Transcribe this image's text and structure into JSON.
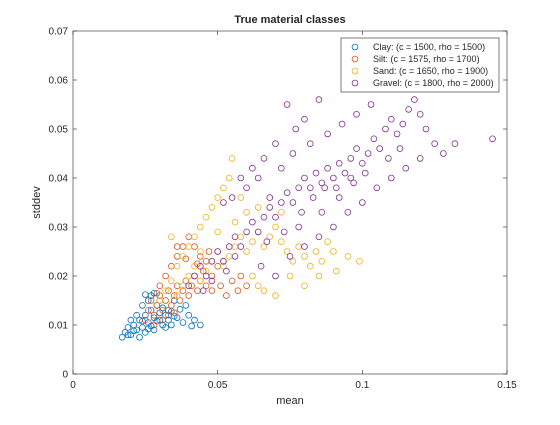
{
  "chart_data": {
    "type": "scatter",
    "title": "True material classes",
    "xlabel": "mean",
    "ylabel": "stddev",
    "xlim": [
      0,
      0.15
    ],
    "ylim": [
      0,
      0.07
    ],
    "xticks": [
      0,
      0.05,
      0.1,
      0.15
    ],
    "xtick_labels": [
      "0",
      "0.05",
      "0.1",
      "0.15"
    ],
    "yticks": [
      0,
      0.01,
      0.02,
      0.03,
      0.04,
      0.05,
      0.06,
      0.07
    ],
    "ytick_labels": [
      "0",
      "0.01",
      "0.02",
      "0.03",
      "0.04",
      "0.05",
      "0.06",
      "0.07"
    ],
    "grid": false,
    "legend_position": "top-right",
    "marker": "open-circle",
    "series": [
      {
        "name": "Clay: (c = 1500, rho = 1500)",
        "color": "#0072BD",
        "points": [
          [
            0.017,
            0.0075
          ],
          [
            0.018,
            0.0085
          ],
          [
            0.019,
            0.0095
          ],
          [
            0.02,
            0.008
          ],
          [
            0.021,
            0.01
          ],
          [
            0.022,
            0.009
          ],
          [
            0.023,
            0.011
          ],
          [
            0.024,
            0.0095
          ],
          [
            0.025,
            0.012
          ],
          [
            0.026,
            0.0105
          ],
          [
            0.027,
            0.013
          ],
          [
            0.028,
            0.0115
          ],
          [
            0.029,
            0.014
          ],
          [
            0.03,
            0.0125
          ],
          [
            0.022,
            0.012
          ],
          [
            0.024,
            0.014
          ],
          [
            0.026,
            0.015
          ],
          [
            0.027,
            0.016
          ],
          [
            0.028,
            0.0165
          ],
          [
            0.03,
            0.015
          ],
          [
            0.031,
            0.0135
          ],
          [
            0.032,
            0.012
          ],
          [
            0.033,
            0.011
          ],
          [
            0.034,
            0.01
          ],
          [
            0.036,
            0.0115
          ],
          [
            0.038,
            0.0105
          ],
          [
            0.04,
            0.012
          ],
          [
            0.042,
            0.011
          ],
          [
            0.044,
            0.01
          ],
          [
            0.039,
            0.014
          ],
          [
            0.035,
            0.015
          ],
          [
            0.02,
            0.011
          ],
          [
            0.019,
            0.008
          ],
          [
            0.023,
            0.0075
          ],
          [
            0.025,
            0.0085
          ],
          [
            0.028,
            0.009
          ],
          [
            0.031,
            0.01
          ],
          [
            0.033,
            0.013
          ],
          [
            0.021,
            0.0088
          ],
          [
            0.026,
            0.0092
          ],
          [
            0.029,
            0.0108
          ],
          [
            0.032,
            0.0095
          ],
          [
            0.034,
            0.0128
          ],
          [
            0.037,
            0.0132
          ],
          [
            0.041,
            0.0098
          ],
          [
            0.024,
            0.0108
          ],
          [
            0.027,
            0.0098
          ],
          [
            0.03,
            0.011
          ],
          [
            0.035,
            0.0118
          ],
          [
            0.025,
            0.0162
          ]
        ]
      },
      {
        "name": "Silt: (c = 1575, rho = 1700)",
        "color": "#D95319",
        "points": [
          [
            0.025,
            0.011
          ],
          [
            0.026,
            0.013
          ],
          [
            0.027,
            0.015
          ],
          [
            0.028,
            0.012
          ],
          [
            0.029,
            0.014
          ],
          [
            0.03,
            0.016
          ],
          [
            0.031,
            0.013
          ],
          [
            0.032,
            0.015
          ],
          [
            0.033,
            0.017
          ],
          [
            0.034,
            0.014
          ],
          [
            0.035,
            0.016
          ],
          [
            0.036,
            0.018
          ],
          [
            0.037,
            0.015
          ],
          [
            0.038,
            0.017
          ],
          [
            0.039,
            0.019
          ],
          [
            0.04,
            0.016
          ],
          [
            0.041,
            0.018
          ],
          [
            0.042,
            0.02
          ],
          [
            0.043,
            0.017
          ],
          [
            0.044,
            0.019
          ],
          [
            0.045,
            0.021
          ],
          [
            0.046,
            0.018
          ],
          [
            0.048,
            0.02
          ],
          [
            0.05,
            0.022
          ],
          [
            0.03,
            0.018
          ],
          [
            0.032,
            0.02
          ],
          [
            0.034,
            0.022
          ],
          [
            0.036,
            0.024
          ],
          [
            0.038,
            0.026
          ],
          [
            0.04,
            0.028
          ],
          [
            0.042,
            0.026
          ],
          [
            0.044,
            0.024
          ],
          [
            0.046,
            0.023
          ],
          [
            0.048,
            0.017
          ],
          [
            0.051,
            0.018
          ],
          [
            0.053,
            0.016
          ],
          [
            0.055,
            0.019
          ],
          [
            0.057,
            0.017
          ],
          [
            0.06,
            0.018
          ],
          [
            0.058,
            0.02
          ],
          [
            0.028,
            0.01
          ],
          [
            0.031,
            0.011
          ],
          [
            0.033,
            0.012
          ],
          [
            0.035,
            0.0125
          ],
          [
            0.036,
            0.026
          ],
          [
            0.039,
            0.0235
          ],
          [
            0.043,
            0.0225
          ],
          [
            0.047,
            0.025
          ],
          [
            0.052,
            0.023
          ],
          [
            0.029,
            0.0165
          ]
        ]
      },
      {
        "name": "Sand: (c = 1650, rho = 1900)",
        "color": "#EDB120",
        "points": [
          [
            0.03,
            0.015
          ],
          [
            0.032,
            0.017
          ],
          [
            0.034,
            0.019
          ],
          [
            0.036,
            0.016
          ],
          [
            0.038,
            0.018
          ],
          [
            0.04,
            0.02
          ],
          [
            0.042,
            0.022
          ],
          [
            0.044,
            0.019
          ],
          [
            0.046,
            0.021
          ],
          [
            0.048,
            0.023
          ],
          [
            0.05,
            0.025
          ],
          [
            0.052,
            0.022
          ],
          [
            0.054,
            0.024
          ],
          [
            0.056,
            0.026
          ],
          [
            0.058,
            0.028
          ],
          [
            0.06,
            0.025
          ],
          [
            0.062,
            0.027
          ],
          [
            0.064,
            0.029
          ],
          [
            0.066,
            0.026
          ],
          [
            0.068,
            0.028
          ],
          [
            0.07,
            0.03
          ],
          [
            0.072,
            0.027
          ],
          [
            0.074,
            0.025
          ],
          [
            0.076,
            0.023
          ],
          [
            0.078,
            0.026
          ],
          [
            0.08,
            0.024
          ],
          [
            0.082,
            0.022
          ],
          [
            0.084,
            0.025
          ],
          [
            0.086,
            0.023
          ],
          [
            0.088,
            0.027
          ],
          [
            0.09,
            0.025
          ],
          [
            0.04,
            0.026
          ],
          [
            0.042,
            0.028
          ],
          [
            0.044,
            0.03
          ],
          [
            0.046,
            0.032
          ],
          [
            0.048,
            0.034
          ],
          [
            0.05,
            0.036
          ],
          [
            0.052,
            0.038
          ],
          [
            0.054,
            0.04
          ],
          [
            0.055,
            0.044
          ],
          [
            0.058,
            0.036
          ],
          [
            0.06,
            0.033
          ],
          [
            0.062,
            0.02
          ],
          [
            0.064,
            0.018
          ],
          [
            0.066,
            0.017
          ],
          [
            0.07,
            0.016
          ],
          [
            0.075,
            0.02
          ],
          [
            0.08,
            0.018
          ],
          [
            0.085,
            0.02
          ],
          [
            0.091,
            0.021
          ],
          [
            0.095,
            0.024
          ],
          [
            0.099,
            0.023
          ],
          [
            0.036,
            0.022
          ],
          [
            0.038,
            0.024
          ],
          [
            0.044,
            0.025
          ],
          [
            0.05,
            0.029
          ],
          [
            0.056,
            0.031
          ],
          [
            0.064,
            0.034
          ],
          [
            0.072,
            0.033
          ],
          [
            0.034,
            0.028
          ]
        ]
      },
      {
        "name": "Gravel: (c = 1800, rho = 2000)",
        "color": "#7E2F8E",
        "points": [
          [
            0.04,
            0.018
          ],
          [
            0.042,
            0.02
          ],
          [
            0.044,
            0.022
          ],
          [
            0.046,
            0.02
          ],
          [
            0.048,
            0.023
          ],
          [
            0.05,
            0.025
          ],
          [
            0.052,
            0.023
          ],
          [
            0.054,
            0.026
          ],
          [
            0.056,
            0.028
          ],
          [
            0.058,
            0.026
          ],
          [
            0.06,
            0.029
          ],
          [
            0.062,
            0.031
          ],
          [
            0.064,
            0.029
          ],
          [
            0.066,
            0.032
          ],
          [
            0.068,
            0.034
          ],
          [
            0.07,
            0.032
          ],
          [
            0.072,
            0.035
          ],
          [
            0.074,
            0.037
          ],
          [
            0.076,
            0.035
          ],
          [
            0.078,
            0.038
          ],
          [
            0.08,
            0.04
          ],
          [
            0.082,
            0.038
          ],
          [
            0.084,
            0.041
          ],
          [
            0.086,
            0.039
          ],
          [
            0.088,
            0.042
          ],
          [
            0.09,
            0.04
          ],
          [
            0.092,
            0.043
          ],
          [
            0.094,
            0.041
          ],
          [
            0.096,
            0.044
          ],
          [
            0.098,
            0.046
          ],
          [
            0.1,
            0.043
          ],
          [
            0.102,
            0.045
          ],
          [
            0.104,
            0.048
          ],
          [
            0.106,
            0.046
          ],
          [
            0.108,
            0.05
          ],
          [
            0.11,
            0.052
          ],
          [
            0.112,
            0.049
          ],
          [
            0.114,
            0.051
          ],
          [
            0.116,
            0.054
          ],
          [
            0.118,
            0.056
          ],
          [
            0.12,
            0.053
          ],
          [
            0.122,
            0.05
          ],
          [
            0.125,
            0.047
          ],
          [
            0.128,
            0.045
          ],
          [
            0.132,
            0.047
          ],
          [
            0.145,
            0.048
          ],
          [
            0.124,
            0.06
          ],
          [
            0.117,
            0.059
          ],
          [
            0.107,
            0.059
          ],
          [
            0.095,
            0.062
          ],
          [
            0.085,
            0.056
          ],
          [
            0.08,
            0.052
          ],
          [
            0.077,
            0.05
          ],
          [
            0.074,
            0.055
          ],
          [
            0.07,
            0.047
          ],
          [
            0.066,
            0.044
          ],
          [
            0.062,
            0.042
          ],
          [
            0.058,
            0.04
          ],
          [
            0.055,
            0.036
          ],
          [
            0.052,
            0.035
          ],
          [
            0.065,
            0.022
          ],
          [
            0.07,
            0.02
          ],
          [
            0.075,
            0.024
          ],
          [
            0.08,
            0.026
          ],
          [
            0.085,
            0.028
          ],
          [
            0.09,
            0.03
          ],
          [
            0.095,
            0.033
          ],
          [
            0.1,
            0.035
          ],
          [
            0.105,
            0.038
          ],
          [
            0.11,
            0.04
          ],
          [
            0.115,
            0.042
          ],
          [
            0.12,
            0.044
          ],
          [
            0.072,
            0.042
          ],
          [
            0.076,
            0.045
          ],
          [
            0.082,
            0.047
          ],
          [
            0.088,
            0.049
          ],
          [
            0.093,
            0.051
          ],
          [
            0.098,
            0.053
          ],
          [
            0.103,
            0.055
          ],
          [
            0.06,
            0.038
          ],
          [
            0.064,
            0.04
          ],
          [
            0.068,
            0.036
          ],
          [
            0.078,
            0.03
          ],
          [
            0.086,
            0.033
          ],
          [
            0.092,
            0.036
          ],
          [
            0.097,
            0.039
          ],
          [
            0.101,
            0.041
          ],
          [
            0.109,
            0.044
          ],
          [
            0.113,
            0.046
          ],
          [
            0.056,
            0.024
          ],
          [
            0.053,
            0.021
          ],
          [
            0.048,
            0.019
          ],
          [
            0.045,
            0.017
          ],
          [
            0.067,
            0.027
          ],
          [
            0.073,
            0.029
          ],
          [
            0.079,
            0.033
          ],
          [
            0.083,
            0.036
          ],
          [
            0.087,
            0.038
          ],
          [
            0.091,
            0.038
          ],
          [
            0.096,
            0.04
          ]
        ]
      }
    ]
  }
}
